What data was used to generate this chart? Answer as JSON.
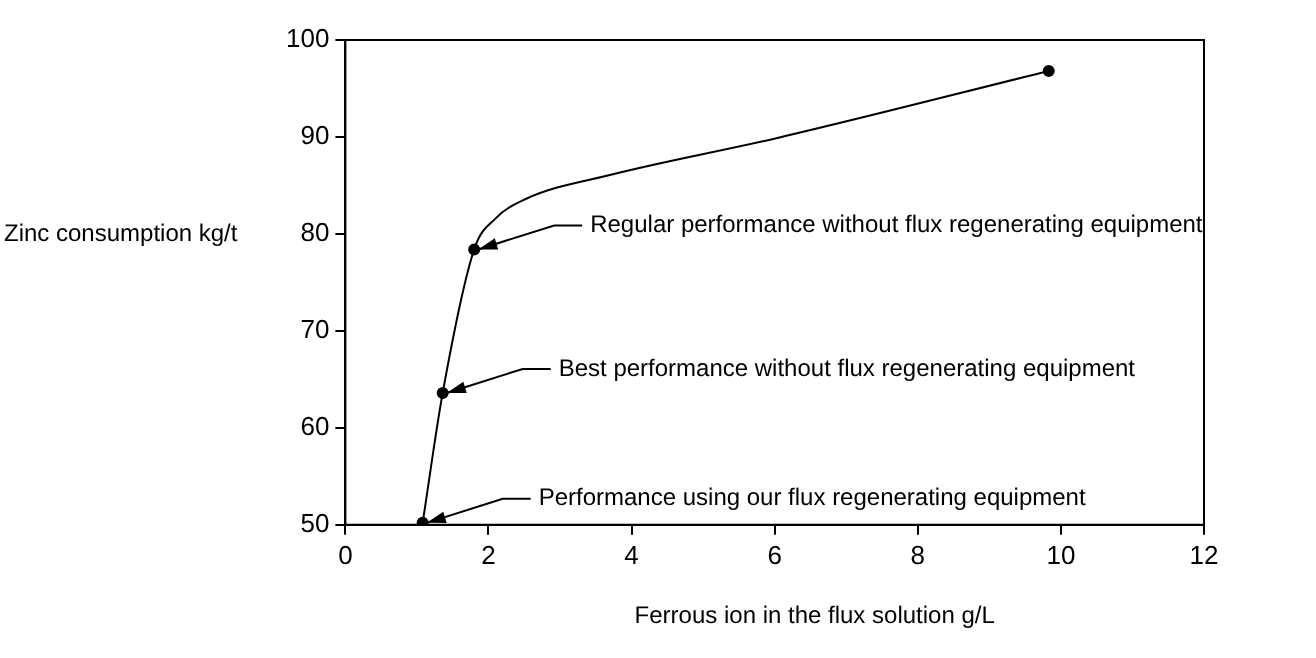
{
  "chart_data": {
    "type": "line",
    "xlabel": "Ferrous ion in the flux solution g/L",
    "ylabel": "Zinc consumption kg/t",
    "series": [
      {
        "type": "line",
        "color": "#000000",
        "marker": "none",
        "x": [
          1.08,
          1.36,
          1.8,
          2.1,
          2.52,
          3.71,
          6.04,
          9.83
        ],
        "values": [
          50.2,
          63.6,
          78.4,
          81.6,
          83.6,
          86.1,
          89.9,
          96.8
        ]
      },
      {
        "type": "scatter",
        "color": "#000000",
        "marker": "circle",
        "x": [
          1.08,
          1.36,
          1.8,
          9.83
        ],
        "values": [
          50.2,
          63.6,
          78.4,
          96.8
        ]
      }
    ],
    "xlim": [
      0,
      12
    ],
    "xticks": [
      0,
      2,
      4,
      6,
      8,
      10,
      12
    ],
    "ylim": [
      50,
      100
    ],
    "yticks": [
      50,
      60,
      70,
      80,
      90,
      100
    ],
    "grid": false,
    "legend": false,
    "annotations": [
      {
        "text": "Regular performance without flux regenerating equipment",
        "x": 1.8,
        "y": 78.4
      },
      {
        "text": "Best performance without flux regenerating equipment",
        "x": 1.36,
        "y": 63.6
      },
      {
        "text": "Performance using our flux regenerating equipment",
        "x": 1.08,
        "y": 50.2
      }
    ]
  }
}
